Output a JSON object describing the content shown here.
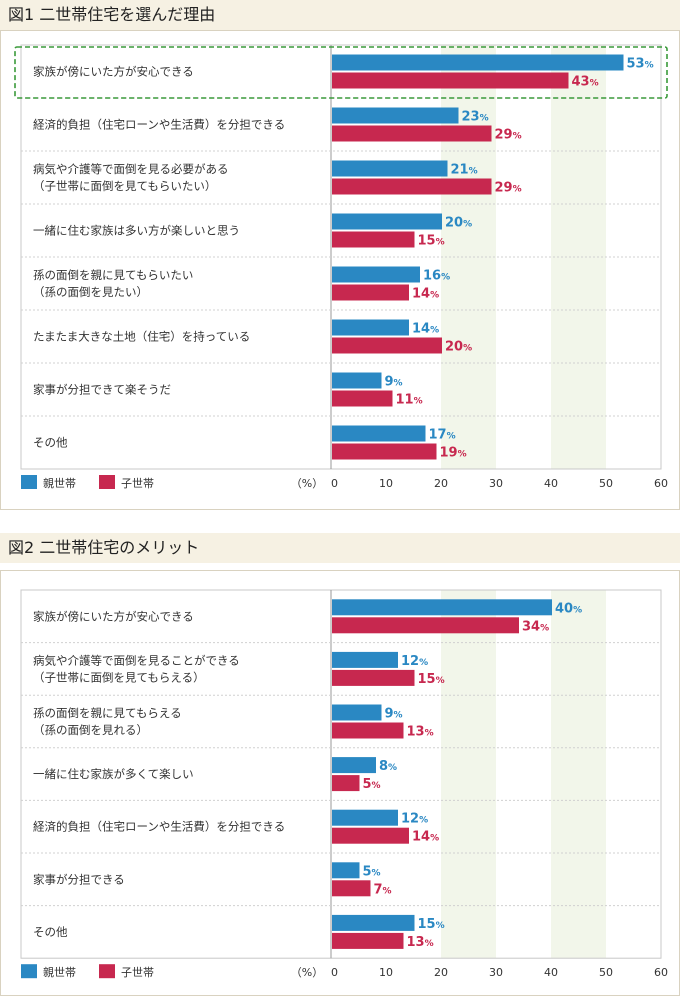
{
  "chart_data": [
    {
      "type": "bar",
      "title": "図1 二世帯住宅を選んだ理由",
      "categories": [
        "家族が傍にいた方が安心できる",
        "経済的負担（住宅ローンや生活費）を分担できる",
        "病気や介護等で面倒を見る必要がある|（子世帯に面倒を見てもらいたい）",
        "一緒に住む家族は多い方が楽しいと思う",
        "孫の面倒を親に見てもらいたい|（孫の面倒を見たい）",
        "たまたま大きな土地（住宅）を持っている",
        "家事が分担できて楽そうだ",
        "その他"
      ],
      "series": [
        {
          "name": "親世帯",
          "values": [
            53,
            23,
            21,
            20,
            16,
            14,
            9,
            17
          ]
        },
        {
          "name": "子世帯",
          "values": [
            43,
            29,
            29,
            15,
            14,
            20,
            11,
            19
          ]
        }
      ],
      "xlim": [
        0,
        60
      ],
      "ticks": [
        "0",
        "10",
        "20",
        "30",
        "40",
        "50",
        "60"
      ],
      "unit_label": "（%）",
      "value_suffix": "%",
      "highlight_category": 0
    },
    {
      "type": "bar",
      "title": "図2 二世帯住宅のメリット",
      "categories": [
        "家族が傍にいた方が安心できる",
        "病気や介護等で面倒を見ることができる|（子世帯に面倒を見てもらえる）",
        "孫の面倒を親に見てもらえる|（孫の面倒を見れる）",
        "一緒に住む家族が多くて楽しい",
        "経済的負担（住宅ローンや生活費）を分担できる",
        "家事が分担できる",
        "その他"
      ],
      "series": [
        {
          "name": "親世帯",
          "values": [
            40,
            12,
            9,
            8,
            12,
            5,
            15
          ]
        },
        {
          "name": "子世帯",
          "values": [
            34,
            15,
            13,
            5,
            14,
            7,
            13
          ]
        }
      ],
      "xlim": [
        0,
        60
      ],
      "ticks": [
        "0",
        "10",
        "20",
        "30",
        "40",
        "50",
        "60"
      ],
      "unit_label": "（%）",
      "value_suffix": "%"
    }
  ],
  "colors": {
    "parent": "#2a88c3",
    "child": "#c7284f",
    "band": "#f2f6ea",
    "highlight": "#3a9a3a",
    "grid": "#d0d0d0"
  }
}
